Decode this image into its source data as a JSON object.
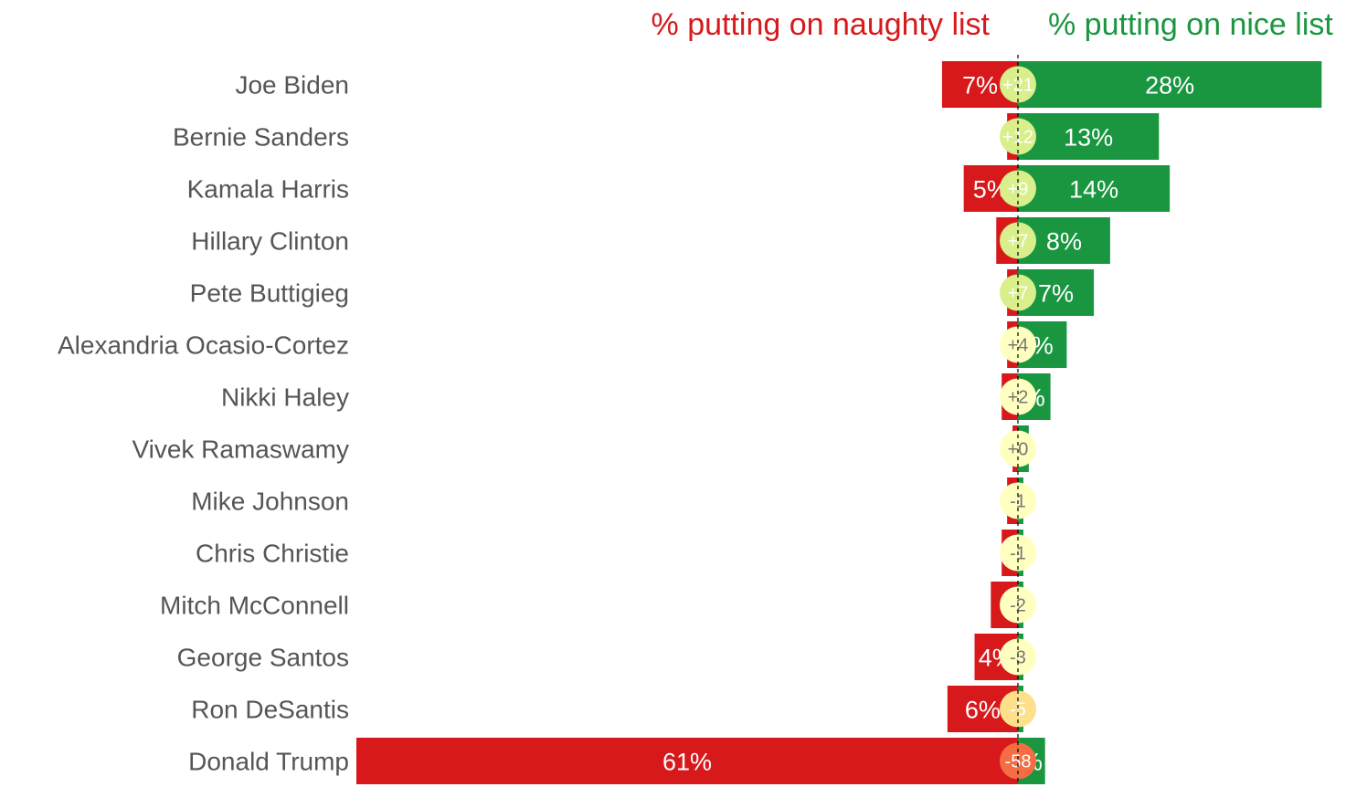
{
  "headers": {
    "naughty": "% putting on naughty list",
    "nice": "% putting on nice list"
  },
  "colors": {
    "naughty": "#d7191c",
    "nice": "#1a9641",
    "zero_line": "#000000"
  },
  "chart_data": {
    "type": "bar",
    "orientation": "horizontal-diverging",
    "categories": [
      "Joe Biden",
      "Bernie Sanders",
      "Kamala Harris",
      "Hillary Clinton",
      "Pete Buttigieg",
      "Alexandria Ocasio-Cortez",
      "Nikki Haley",
      "Vivek Ramaswamy",
      "Mike Johnson",
      "Chris Christie",
      "Mitch McConnell",
      "George Santos",
      "Ron DeSantis",
      "Donald Trump"
    ],
    "series": [
      {
        "name": "% putting on naughty list",
        "values": [
          7,
          1,
          5,
          2,
          1,
          1,
          1.5,
          0.5,
          1,
          1.5,
          2.5,
          4,
          6.5,
          61
        ]
      },
      {
        "name": "% putting on nice list",
        "values": [
          28,
          13,
          14,
          8.5,
          7,
          4.5,
          3,
          1,
          0.5,
          0.5,
          0.5,
          0.5,
          0.5,
          2.5
        ]
      }
    ],
    "naughty_labels": [
      "7%",
      "",
      "5%",
      "",
      "",
      "",
      "",
      "",
      "",
      "",
      "",
      "4%",
      "6%",
      "61%"
    ],
    "nice_labels": [
      "28%",
      "13%",
      "14%",
      "8%",
      "7%",
      "%",
      "%",
      "",
      "",
      "",
      "",
      "",
      "",
      "%"
    ],
    "net": [
      "+21",
      "+12",
      "+9",
      "+7",
      "+7",
      "+4",
      "+2",
      "+0",
      "-1",
      "-1",
      "-2",
      "-3",
      "-5",
      "-58"
    ],
    "net_colors": [
      "#d9ef8b",
      "#d9ef8b",
      "#d9ef8b",
      "#d9ef8b",
      "#d9ef8b",
      "#ffffbf",
      "#ffffbf",
      "#ffffbf",
      "#ffffbf",
      "#ffffbf",
      "#ffffbf",
      "#ffffbf",
      "#fee08b",
      "#f46d43"
    ],
    "net_text_colors": [
      "#ffffff",
      "#ffffff",
      "#ffffff",
      "#ffffff",
      "#ffffff",
      "#777777",
      "#777777",
      "#777777",
      "#777777",
      "#777777",
      "#777777",
      "#777777",
      "#ffffff",
      "#ffffff"
    ],
    "xlim": [
      -61,
      32
    ],
    "grid": false
  }
}
